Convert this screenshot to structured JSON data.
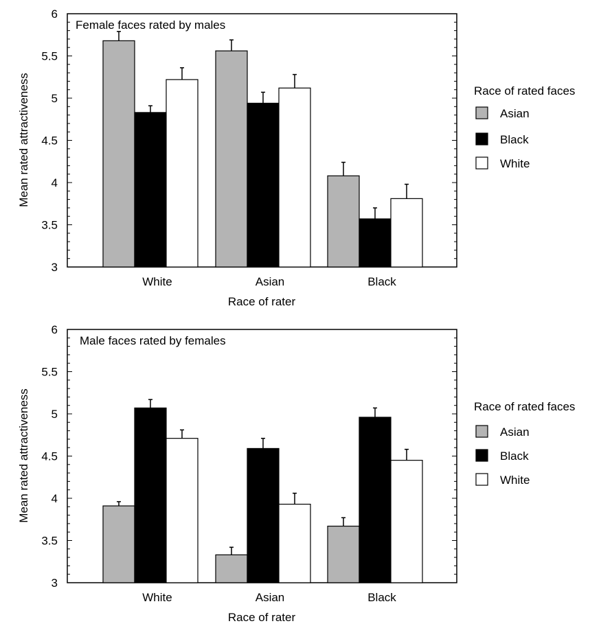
{
  "chart_data": [
    {
      "type": "bar",
      "title": "Female faces rated by males",
      "xlabel": "Race of rater",
      "ylabel": "Mean rated attractiveness",
      "categories": [
        "White",
        "Asian",
        "Black"
      ],
      "ylim": [
        3,
        6
      ],
      "yticks": [
        "3",
        "3.5",
        "4",
        "4.5",
        "5",
        "5.5",
        "6"
      ],
      "series": [
        {
          "name": "Asian",
          "values": [
            5.68,
            5.56,
            4.08
          ],
          "errors": [
            0.11,
            0.13,
            0.16
          ]
        },
        {
          "name": "Black",
          "values": [
            4.83,
            4.94,
            3.57
          ],
          "errors": [
            0.08,
            0.13,
            0.13
          ]
        },
        {
          "name": "White",
          "values": [
            5.22,
            5.12,
            3.81
          ],
          "errors": [
            0.14,
            0.16,
            0.17
          ]
        }
      ],
      "legend": {
        "title": "Race of rated faces",
        "placement": "right"
      },
      "grid": false
    },
    {
      "type": "bar",
      "title": "Male faces rated by females",
      "xlabel": "Race of rater",
      "ylabel": "Mean rated attractiveness",
      "categories": [
        "White",
        "Asian",
        "Black"
      ],
      "ylim": [
        3,
        6
      ],
      "yticks": [
        "3",
        "3.5",
        "4",
        "4.5",
        "5",
        "5.5",
        "6"
      ],
      "series": [
        {
          "name": "Asian",
          "values": [
            3.91,
            3.33,
            3.67
          ],
          "errors": [
            0.05,
            0.09,
            0.1
          ]
        },
        {
          "name": "Black",
          "values": [
            5.07,
            4.59,
            4.96
          ],
          "errors": [
            0.1,
            0.12,
            0.11
          ]
        },
        {
          "name": "White",
          "values": [
            4.71,
            3.93,
            4.45
          ],
          "errors": [
            0.1,
            0.13,
            0.13
          ]
        }
      ],
      "legend": {
        "title": "Race of rated faces",
        "placement": "right"
      },
      "grid": false
    }
  ],
  "colors": {
    "Asian": "#b4b4b4",
    "Black": "#000000",
    "White": "#ffffff"
  }
}
